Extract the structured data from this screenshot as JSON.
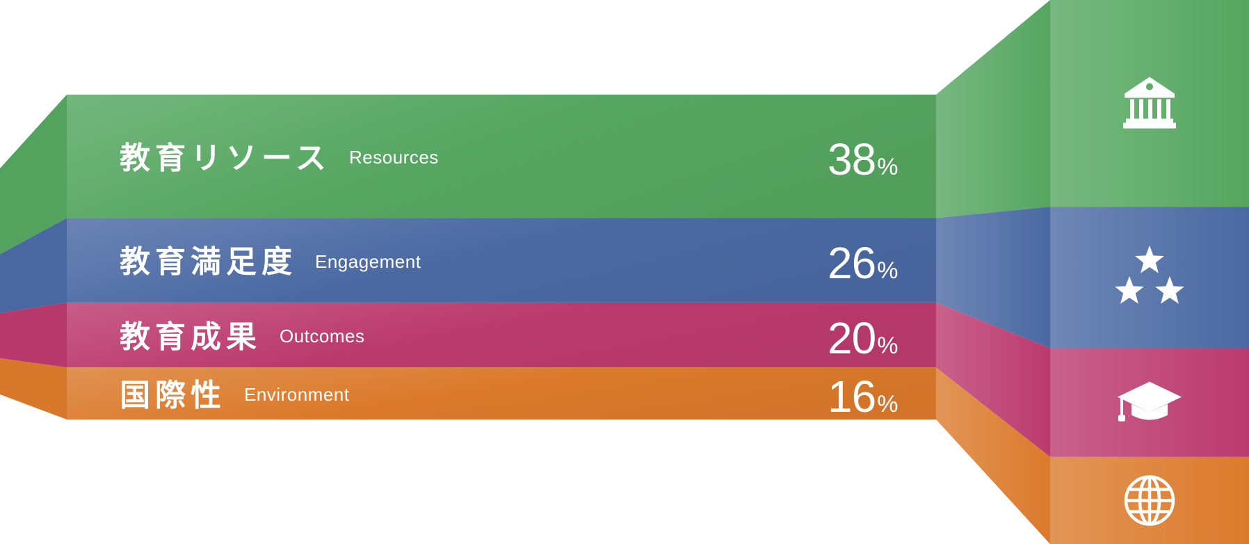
{
  "chart_data": {
    "type": "bar",
    "orientation": "stacked-horizontal-bands",
    "unit": "%",
    "categories": [
      {
        "key": "resources",
        "label_jp": "教育リソース",
        "label_en": "Resources",
        "value": 38,
        "color": "#55a660",
        "icon": "bank-icon"
      },
      {
        "key": "engagement",
        "label_jp": "教育満足度",
        "label_en": "Engagement",
        "value": 26,
        "color": "#4a69a3",
        "icon": "stars-icon"
      },
      {
        "key": "outcomes",
        "label_jp": "教育成果",
        "label_en": "Outcomes",
        "value": 20,
        "color": "#bb3a6e",
        "icon": "graduation-cap-icon"
      },
      {
        "key": "environment",
        "label_jp": "国際性",
        "label_en": "Environment",
        "value": 16,
        "color": "#db7a2c",
        "icon": "globe-icon"
      }
    ]
  }
}
